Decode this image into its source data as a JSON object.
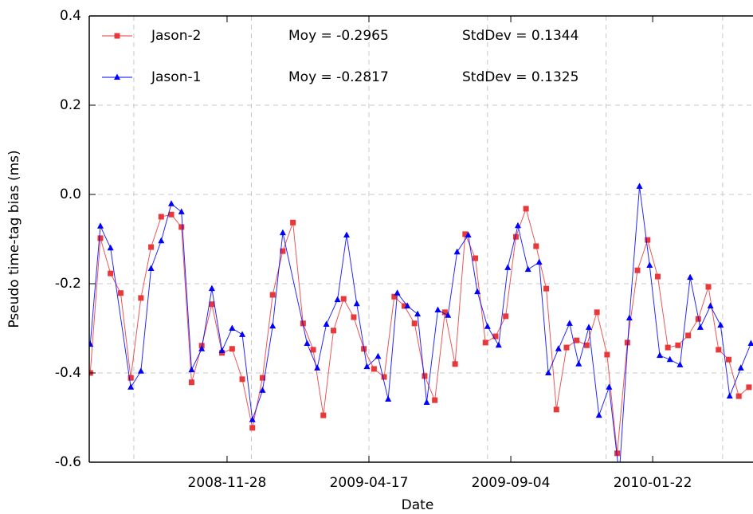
{
  "chart_data": {
    "type": "line",
    "xlabel": "Date",
    "ylabel": "Pseudo time-tag bias (ms)",
    "xlim": [
      "2008-07-15",
      "2010-05-01"
    ],
    "xticks": [
      "2008-11-28",
      "2009-04-17",
      "2009-09-04",
      "2010-01-22"
    ],
    "xgrid": [
      "2008-08-28",
      "2008-12-22",
      "2009-04-17",
      "2009-08-12",
      "2009-12-07",
      "2010-04-01"
    ],
    "ylim": [
      -0.6,
      0.4
    ],
    "yticks": [
      -0.6,
      -0.4,
      -0.2,
      {
        "value": 0,
        "label": "0.0"
      },
      0.2,
      0.4
    ],
    "grid": true,
    "legend": "top-left",
    "series": [
      {
        "name": "Jason-2",
        "color": "#e8383a",
        "marker": "square",
        "stats": [
          "Moy = -0.2965",
          "StdDev = 0.1344"
        ],
        "x": [
          "2008-07-16",
          "2008-07-26",
          "2008-08-05",
          "2008-08-15",
          "2008-08-25",
          "2008-09-04",
          "2008-09-14",
          "2008-09-24",
          "2008-10-04",
          "2008-10-14",
          "2008-10-24",
          "2008-11-03",
          "2008-11-13",
          "2008-11-23",
          "2008-12-03",
          "2008-12-13",
          "2008-12-23",
          "2009-01-02",
          "2009-01-12",
          "2009-01-22",
          "2009-02-01",
          "2009-02-11",
          "2009-02-21",
          "2009-03-03",
          "2009-03-13",
          "2009-03-23",
          "2009-04-02",
          "2009-04-12",
          "2009-04-22",
          "2009-05-02",
          "2009-05-12",
          "2009-05-22",
          "2009-06-01",
          "2009-06-11",
          "2009-06-21",
          "2009-07-01",
          "2009-07-11",
          "2009-07-21",
          "2009-07-31",
          "2009-08-10",
          "2009-08-20",
          "2009-08-30",
          "2009-09-09",
          "2009-09-19",
          "2009-09-29",
          "2009-10-09",
          "2009-10-19",
          "2009-10-29",
          "2009-11-08",
          "2009-11-18",
          "2009-11-28",
          "2009-12-08",
          "2009-12-18",
          "2009-12-28",
          "2010-01-07",
          "2010-01-17",
          "2010-01-27",
          "2010-02-06",
          "2010-02-16",
          "2010-02-26",
          "2010-03-08",
          "2010-03-18",
          "2010-03-28",
          "2010-04-07",
          "2010-04-17",
          "2010-04-27"
        ],
        "values": [
          -0.4,
          -0.098,
          -0.177,
          -0.221,
          -0.411,
          -0.232,
          -0.118,
          -0.05,
          -0.045,
          -0.073,
          -0.421,
          -0.339,
          -0.246,
          -0.355,
          -0.346,
          -0.414,
          -0.523,
          -0.411,
          -0.225,
          -0.127,
          -0.063,
          -0.289,
          -0.348,
          -0.495,
          -0.305,
          -0.234,
          -0.275,
          -0.346,
          -0.391,
          -0.409,
          -0.229,
          -0.25,
          -0.289,
          -0.407,
          -0.461,
          -0.264,
          -0.38,
          -0.089,
          -0.143,
          -0.332,
          -0.318,
          -0.273,
          -0.095,
          -0.032,
          -0.116,
          -0.211,
          -0.482,
          -0.343,
          -0.327,
          -0.338,
          -0.264,
          -0.359,
          -0.58,
          -0.332,
          -0.17,
          -0.102,
          -0.184,
          -0.343,
          -0.338,
          -0.316,
          -0.279,
          -0.207,
          -0.348,
          -0.37,
          -0.452,
          -0.432
        ]
      },
      {
        "name": "Jason-1",
        "color": "#0000ff",
        "marker": "triangle",
        "stats": [
          "Moy = -0.2817",
          "StdDev = 0.1325"
        ],
        "x": [
          "2008-07-16",
          "2008-07-26",
          "2008-08-05",
          "2008-08-25",
          "2008-09-04",
          "2008-09-14",
          "2008-09-24",
          "2008-10-04",
          "2008-10-14",
          "2008-10-24",
          "2008-11-03",
          "2008-11-13",
          "2008-11-23",
          "2008-12-03",
          "2008-12-13",
          "2008-12-23",
          "2009-01-02",
          "2009-01-12",
          "2009-01-22",
          "2009-02-15",
          "2009-02-25",
          "2009-03-06",
          "2009-03-17",
          "2009-03-26",
          "2009-04-05",
          "2009-04-15",
          "2009-04-26",
          "2009-05-06",
          "2009-05-15",
          "2009-05-25",
          "2009-06-04",
          "2009-06-13",
          "2009-06-24",
          "2009-07-04",
          "2009-07-13",
          "2009-07-24",
          "2009-08-02",
          "2009-08-12",
          "2009-08-23",
          "2009-09-01",
          "2009-09-11",
          "2009-09-21",
          "2009-10-02",
          "2009-10-11",
          "2009-10-21",
          "2009-11-01",
          "2009-11-10",
          "2009-11-20",
          "2009-11-30",
          "2009-12-10",
          "2009-12-20",
          "2009-12-30",
          "2010-01-09",
          "2010-01-19",
          "2010-01-29",
          "2010-02-08",
          "2010-02-18",
          "2010-02-28",
          "2010-03-10",
          "2010-03-20",
          "2010-03-30",
          "2010-04-08",
          "2010-04-19",
          "2010-04-29"
        ],
        "values": [
          -0.336,
          -0.071,
          -0.12,
          -0.432,
          -0.396,
          -0.166,
          -0.104,
          -0.021,
          -0.039,
          -0.393,
          -0.346,
          -0.211,
          -0.35,
          -0.3,
          -0.314,
          -0.505,
          -0.439,
          -0.295,
          -0.086,
          -0.334,
          -0.389,
          -0.291,
          -0.236,
          -0.091,
          -0.245,
          -0.386,
          -0.363,
          -0.459,
          -0.221,
          -0.25,
          -0.268,
          -0.466,
          -0.259,
          -0.271,
          -0.129,
          -0.091,
          -0.218,
          -0.296,
          -0.338,
          -0.164,
          -0.07,
          -0.168,
          -0.152,
          -0.4,
          -0.346,
          -0.289,
          -0.38,
          -0.298,
          -0.495,
          -0.432,
          -0.629,
          -0.277,
          0.018,
          -0.159,
          -0.361,
          -0.37,
          -0.382,
          -0.186,
          -0.298,
          -0.25,
          -0.293,
          -0.452,
          -0.389,
          -0.334
        ]
      }
    ]
  }
}
